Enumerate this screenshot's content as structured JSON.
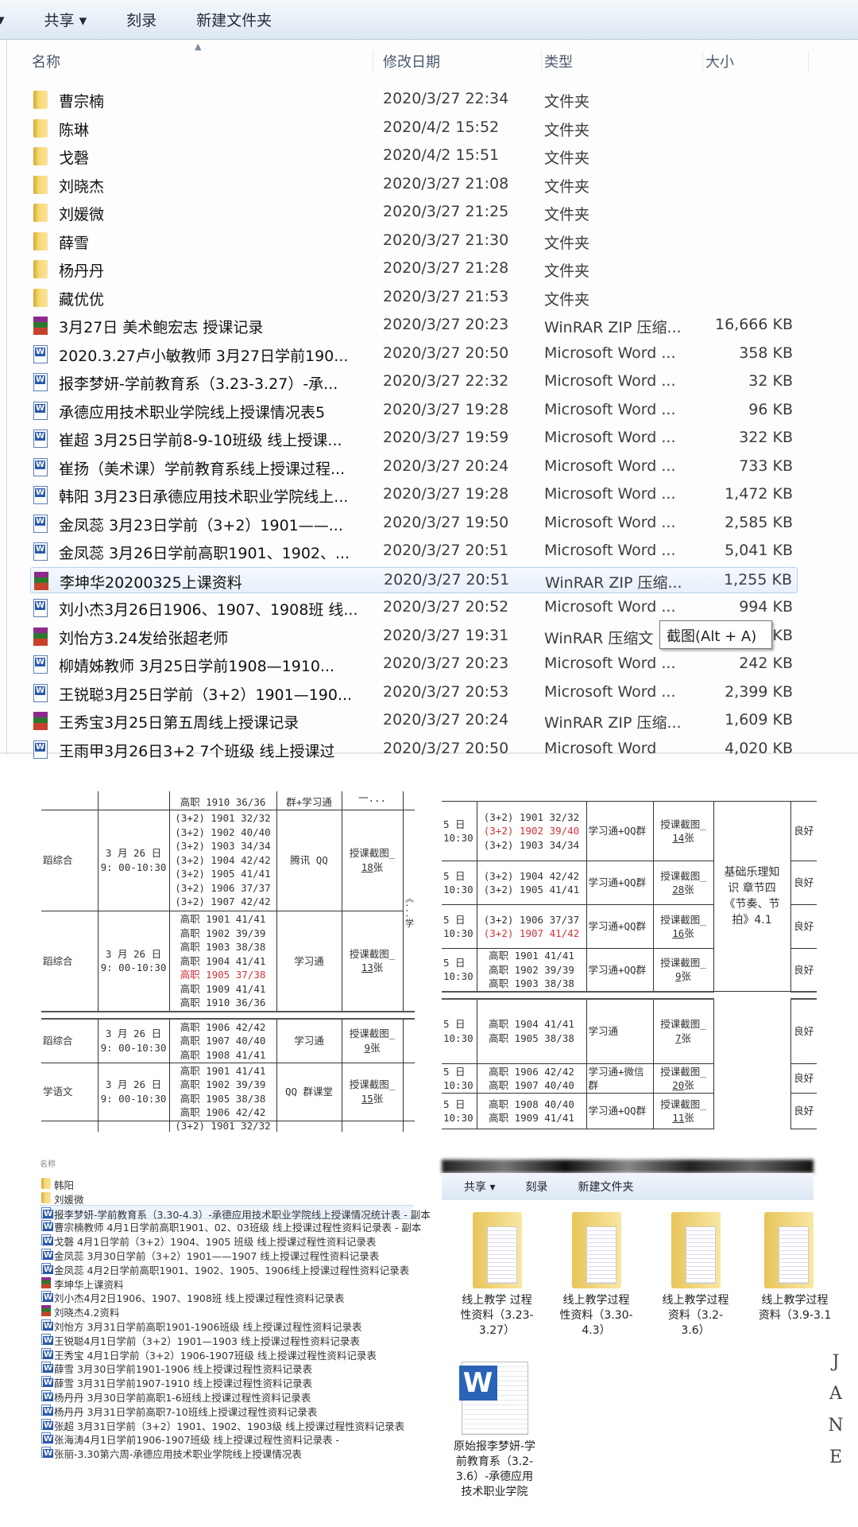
{
  "explorer": {
    "toolbar": {
      "share": "共享 ▾",
      "burn": "刻录",
      "new_folder": "新建文件夹"
    },
    "columns": {
      "name": "名称",
      "date": "修改日期",
      "type": "类型",
      "size": "大小"
    },
    "rows": [
      {
        "icon": "folder",
        "name": "曹宗楠",
        "date": "2020/3/27 22:34",
        "type": "文件夹",
        "size": ""
      },
      {
        "icon": "folder",
        "name": "陈琳",
        "date": "2020/4/2 15:52",
        "type": "文件夹",
        "size": ""
      },
      {
        "icon": "folder",
        "name": "戈磬",
        "date": "2020/4/2 15:51",
        "type": "文件夹",
        "size": ""
      },
      {
        "icon": "folder",
        "name": "刘晓杰",
        "date": "2020/3/27 21:08",
        "type": "文件夹",
        "size": ""
      },
      {
        "icon": "folder",
        "name": "刘媛微",
        "date": "2020/3/27 21:25",
        "type": "文件夹",
        "size": ""
      },
      {
        "icon": "folder",
        "name": "薛雪",
        "date": "2020/3/27 21:30",
        "type": "文件夹",
        "size": ""
      },
      {
        "icon": "folder",
        "name": "杨丹丹",
        "date": "2020/3/27 21:28",
        "type": "文件夹",
        "size": ""
      },
      {
        "icon": "folder",
        "name": "藏优优",
        "date": "2020/3/27 21:53",
        "type": "文件夹",
        "size": ""
      },
      {
        "icon": "rar",
        "name": "3月27日 美术鲍宏志 授课记录",
        "date": "2020/3/27 20:23",
        "type": "WinRAR ZIP 压缩...",
        "size": "16,666 KB"
      },
      {
        "icon": "word",
        "name": "2020.3.27卢小敏教师  3月27日学前190...",
        "date": "2020/3/27 20:50",
        "type": "Microsoft Word ...",
        "size": "358 KB"
      },
      {
        "icon": "word",
        "name": "报李梦妍-学前教育系（3.23-3.27）-承...",
        "date": "2020/3/27 22:32",
        "type": "Microsoft Word ...",
        "size": "32 KB"
      },
      {
        "icon": "word",
        "name": "承德应用技术职业学院线上授课情况表5",
        "date": "2020/3/27 19:28",
        "type": "Microsoft Word ...",
        "size": "96 KB"
      },
      {
        "icon": "word",
        "name": "崔超 3月25日学前8-9-10班级 线上授课...",
        "date": "2020/3/27 19:59",
        "type": "Microsoft Word ...",
        "size": "322 KB"
      },
      {
        "icon": "word",
        "name": "崔扬（美术课）学前教育系线上授课过程...",
        "date": "2020/3/27 20:24",
        "type": "Microsoft Word ...",
        "size": "733 KB"
      },
      {
        "icon": "word",
        "name": "韩阳 3月23日承德应用技术职业学院线上...",
        "date": "2020/3/27 19:28",
        "type": "Microsoft Word ...",
        "size": "1,472 KB"
      },
      {
        "icon": "word",
        "name": "金凤蕊  3月23日学前（3+2）1901——...",
        "date": "2020/3/27 19:50",
        "type": "Microsoft Word ...",
        "size": "2,585 KB"
      },
      {
        "icon": "word",
        "name": "金凤蕊  3月26日学前高职1901、1902、...",
        "date": "2020/3/27 20:51",
        "type": "Microsoft Word ...",
        "size": "5,041 KB"
      },
      {
        "icon": "rar",
        "name": "李坤华20200325上课资料",
        "date": "2020/3/27 20:51",
        "type": "WinRAR ZIP 压缩...",
        "size": "1,255 KB",
        "selected": true
      },
      {
        "icon": "word",
        "name": "刘小杰3月26日1906、1907、1908班 线...",
        "date": "2020/3/27 20:52",
        "type": "Microsoft Word ...",
        "size": "994 KB"
      },
      {
        "icon": "rar",
        "name": "刘怡方3.24发给张超老师",
        "date": "2020/3/27 19:31",
        "type": "WinRAR 压缩文",
        "size": "KB"
      },
      {
        "icon": "word",
        "name": "柳婧姊教师  3月25日学前1908—1910...",
        "date": "2020/3/27 20:23",
        "type": "Microsoft Word ...",
        "size": "242 KB"
      },
      {
        "icon": "word",
        "name": "王锐聪3月25日学前（3+2）1901—190...",
        "date": "2020/3/27 20:53",
        "type": "Microsoft Word ...",
        "size": "2,399 KB"
      },
      {
        "icon": "rar",
        "name": "王秀宝3月25日第五周线上授课记录",
        "date": "2020/3/27 20:24",
        "type": "WinRAR ZIP 压缩...",
        "size": "1,609 KB"
      },
      {
        "icon": "word",
        "name": "王雨甲3月26日3+2 7个班级 线上授课过",
        "date": "2020/3/27 20:50",
        "type": "Microsoft Word",
        "size": "4,020 KB"
      }
    ],
    "tooltip": "截图(Alt + A)"
  },
  "table_left": {
    "top_partial": {
      "classes": [
        {
          "t": "高职 1910  36/36"
        }
      ],
      "platform": "群+学习通",
      "shots": "一..."
    },
    "rows": [
      {
        "subject": "蹈综合",
        "date": "3 月 26 日",
        "time": "9: 00-10:30",
        "classes": [
          {
            "t": "(3+2) 1901  32/32"
          },
          {
            "t": "(3+2) 1902  40/40"
          },
          {
            "t": "(3+2) 1903  34/34"
          },
          {
            "t": "(3+2) 1904  42/42"
          },
          {
            "t": "(3+2) 1905  41/41"
          },
          {
            "t": "(3+2) 1906  37/37"
          },
          {
            "t": "(3+2) 1907  42/42"
          }
        ],
        "platform": "腾讯 QQ",
        "shots_label": "授课截图_",
        "shots_count": "18",
        "shots_unit": "张"
      },
      {
        "subject": "蹈综合",
        "date": "3 月 26 日",
        "time": "9: 00-10:30",
        "classes": [
          {
            "t": "高职 1901  41/41"
          },
          {
            "t": "高职 1902  39/39"
          },
          {
            "t": "高职 1903  38/38"
          },
          {
            "t": "高职 1904  41/41"
          },
          {
            "t": "高职 1905  37/38",
            "red": true
          },
          {
            "t": "高职 1909  41/41"
          },
          {
            "t": "高职 1910  36/36"
          }
        ],
        "platform": "学习通",
        "shots_label": "授课截图_",
        "shots_count": "13",
        "shots_unit": "张"
      },
      {
        "sep": true
      },
      {
        "subject": "蹈综合",
        "date": "3 月 26 日",
        "time": "9: 00-10:30",
        "classes": [
          {
            "t": "高职 1906  42/42"
          },
          {
            "t": "高职 1907  40/40"
          },
          {
            "t": "高职 1908  41/41"
          }
        ],
        "platform": "学习通",
        "shots_label": "授课截图_",
        "shots_count": "9",
        "shots_unit": "张"
      },
      {
        "subject": "学语文",
        "date": "3 月 26 日",
        "time": "9: 00-10:30",
        "classes": [
          {
            "t": "高职 1901  41/41"
          },
          {
            "t": "高职 1902  39/39"
          },
          {
            "t": "高职 1905  38/38"
          },
          {
            "t": "高职 1906  42/42"
          }
        ],
        "platform": "QQ 群课堂",
        "shots_label": "授课截图_",
        "shots_count": "15",
        "shots_unit": "张"
      }
    ],
    "bottom_partial": "(3+2) 1901  32/32",
    "side_note": "《...学"
  },
  "table_right": {
    "merged_topic": "基础乐理知识 章节四《节奏、节拍》4.1",
    "rows": [
      {
        "date": "5 日",
        "time": "10:30",
        "classes": [
          {
            "t": "(3+2) 1901  32/32"
          },
          {
            "t": "(3+2) 1902  39/40",
            "red": true
          },
          {
            "t": "(3+2) 1903  34/34"
          }
        ],
        "platform": "学习通+QQ群",
        "shots_label": "授课截图_",
        "shots_count": "14",
        "shots_unit": "张",
        "eval": "良好"
      },
      {
        "date": "5 日",
        "time": "10:30",
        "classes": [
          {
            "t": "(3+2) 1904  42/42"
          },
          {
            "t": "(3+2) 1905  41/41"
          }
        ],
        "platform": "学习通+QQ群",
        "shots_label": "授课截图_",
        "shots_count": "28",
        "shots_unit": "张",
        "eval": "良好"
      },
      {
        "date": "5 日",
        "time": "10:30",
        "classes": [
          {
            "t": "(3+2) 1906  37/37"
          },
          {
            "t": "(3+2) 1907  41/42",
            "red": true
          }
        ],
        "platform": "学习通+QQ群",
        "shots_label": "授课截图_",
        "shots_count": "16",
        "shots_unit": "张",
        "eval": "良好"
      },
      {
        "date": "5 日",
        "time": "10:30",
        "classes": [
          {
            "t": "高职 1901  41/41"
          },
          {
            "t": "高职 1902  39/39"
          },
          {
            "t": "高职 1903  38/38"
          }
        ],
        "platform": "学习通+QQ群",
        "shots_label": "授课截图_",
        "shots_count": "9",
        "shots_unit": "张",
        "eval": "良好"
      },
      {
        "sep": true
      },
      {
        "date": "5 日",
        "time": "10:30",
        "classes": [
          {
            "t": "高职 1904  41/41"
          },
          {
            "t": "高职 1905  38/38"
          }
        ],
        "platform": "学习通",
        "shots_label": "授课截图_",
        "shots_count": "7",
        "shots_unit": "张",
        "eval": "良好"
      },
      {
        "date": "5 日",
        "time": "10:30",
        "classes": [
          {
            "t": "高职 1906  42/42"
          },
          {
            "t": "高职 1907  40/40"
          }
        ],
        "platform": "学习通+微信群",
        "shots_label": "授课截图_",
        "shots_count": "20",
        "shots_unit": "张",
        "eval": "良好"
      },
      {
        "date": "5 日",
        "time": "10:30",
        "classes": [
          {
            "t": "高职 1908  40/40"
          },
          {
            "t": "高职 1909  41/41"
          }
        ],
        "platform": "学习通+QQ群",
        "shots_label": "授课截图_",
        "shots_count": "11",
        "shots_unit": "张",
        "eval": "良好"
      }
    ]
  },
  "file_list": {
    "header": "名称",
    "items": [
      {
        "icon": "folder",
        "name": "韩阳"
      },
      {
        "icon": "folder",
        "name": "刘媛微"
      },
      {
        "icon": "word",
        "name": "报李梦妍-学前教育系（3.30-4.3）-承德应用技术职业学院线上授课情况统计表 - 副本",
        "selected": true
      },
      {
        "icon": "word",
        "name": "曹宗楠教师  4月1日学前高职1901、02、03班级 线上授课过程性资料记录表 - 副本"
      },
      {
        "icon": "word",
        "name": "戈磬  4月1日学前（3+2）1904、1905 班级 线上授课过程性资料记录表"
      },
      {
        "icon": "word",
        "name": "金凤蕊  3月30日学前（3+2）1901——1907 线上授课过程性资料记录表"
      },
      {
        "icon": "word",
        "name": "金凤蕊  4月2日学前高职1901、1902、1905、1906线上授课过程性资料记录表"
      },
      {
        "icon": "rar",
        "name": "李坤华上课资料"
      },
      {
        "icon": "word",
        "name": "刘小杰4月2日1906、1907、1908班 线上授课过程性资料记录表"
      },
      {
        "icon": "rar",
        "name": "刘晓杰4.2资料"
      },
      {
        "icon": "word",
        "name": "刘怡方  3月31日学前高职1901-1906班级 线上授课过程性资料记录表"
      },
      {
        "icon": "word",
        "name": "王锐聪4月1日学前（3+2）1901—1903 线上授课过程性资料记录表"
      },
      {
        "icon": "word",
        "name": "王秀宝 4月1日学前（3+2）1906-1907班级 线上授课过程性资料记录表"
      },
      {
        "icon": "word",
        "name": "薛雪  3月30日学前1901-1906 线上授课过程性资料记录表"
      },
      {
        "icon": "word",
        "name": "薛雪  3月31日学前1907-1910 线上授课过程性资料记录表"
      },
      {
        "icon": "word",
        "name": "杨丹丹  3月30日学前高职1-6班线上授课过程性资料记录表"
      },
      {
        "icon": "word",
        "name": "杨丹丹  3月31日学前高职7-10班线上授课过程性资料记录表"
      },
      {
        "icon": "word",
        "name": "张超  3月31日学前（3+2）1901、1902、1903级 线上授课过程性资料记录表"
      },
      {
        "icon": "word",
        "name": "张海涛4月1日学前1906-1907班级 线上授课过程性资料记录表 -"
      },
      {
        "icon": "word",
        "name": "张丽-3.30第六周-承德应用技术职业学院线上授课情况表"
      }
    ]
  },
  "explorer_icons": {
    "toolbar": {
      "share": "共享 ▾",
      "burn": "刻录",
      "new_folder": "新建文件夹"
    },
    "folders": [
      "线上教学 过程性资料（3.23-3.27）",
      "线上教学过程性资料（3.30-4.3）",
      "线上教学过程资料（3.2-3.6）",
      "线上教学过程资料（3.9-3.1"
    ],
    "doc": "原始报李梦妍-学前教育系（3.2-3.6）-承德应用技术职业学院"
  },
  "watermark": [
    "J",
    "A",
    "N",
    "E"
  ]
}
